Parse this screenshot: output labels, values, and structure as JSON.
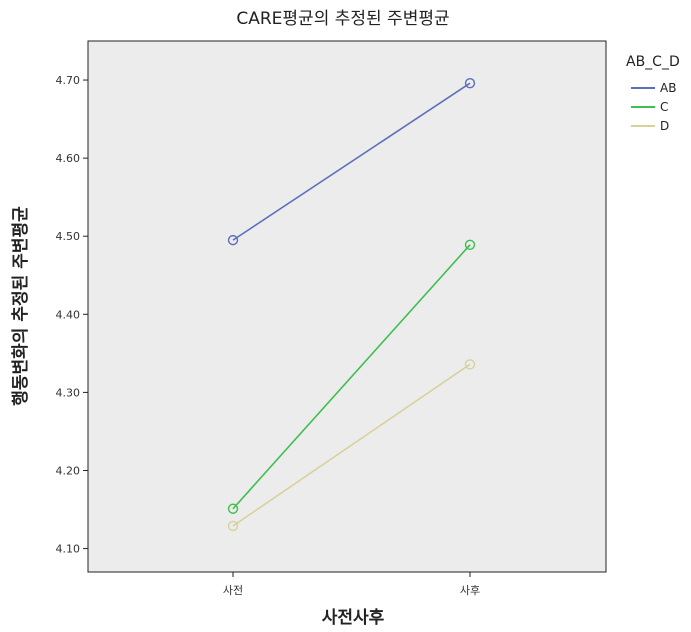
{
  "chart_data": {
    "type": "line",
    "title": "CARE평균의 추정된 주변평균",
    "xlabel": "사전사후",
    "ylabel": "행동변화의 추정된 주변평균",
    "categories": [
      "사전",
      "사후"
    ],
    "ylim": [
      4.07,
      4.75
    ],
    "yticks": [
      "4.10",
      "4.20",
      "4.30",
      "4.40",
      "4.50",
      "4.60",
      "4.70"
    ],
    "grid": false,
    "legend": {
      "title": "AB_C_D",
      "placement": "right"
    },
    "series": [
      {
        "name": "AB",
        "color": "#5b6fbf",
        "values": [
          4.495,
          4.696
        ]
      },
      {
        "name": "C",
        "color": "#3fbf4f",
        "values": [
          4.151,
          4.489
        ]
      },
      {
        "name": "D",
        "color": "#d8d29a",
        "values": [
          4.129,
          4.336
        ]
      }
    ]
  }
}
